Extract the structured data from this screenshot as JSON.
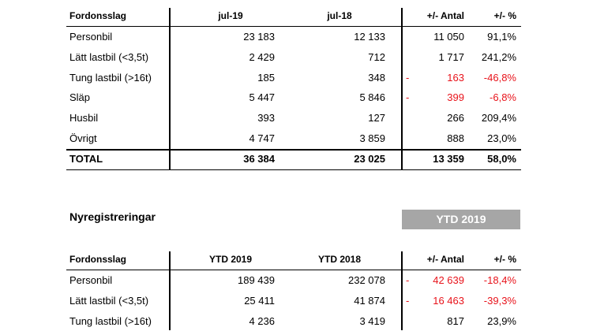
{
  "table1": {
    "headers": [
      "Fordonsslag",
      "jul-19",
      "jul-18",
      "+/- Antal",
      "+/- %"
    ],
    "rows": [
      {
        "name": "Personbil",
        "cur": "23 183",
        "prev": "12 133",
        "diff": "11 050",
        "pct": "91,1%",
        "negative": false
      },
      {
        "name": "Lätt lastbil (<3,5t)",
        "cur": "2 429",
        "prev": "712",
        "diff": "1 717",
        "pct": "241,2%",
        "negative": false
      },
      {
        "name": "Tung lastbil (>16t)",
        "cur": "185",
        "prev": "348",
        "diff": "163",
        "pct": "-46,8%",
        "negative": true
      },
      {
        "name": "Släp",
        "cur": "5 447",
        "prev": "5 846",
        "diff": "399",
        "pct": "-6,8%",
        "negative": true
      },
      {
        "name": "Husbil",
        "cur": "393",
        "prev": "127",
        "diff": "266",
        "pct": "209,4%",
        "negative": false
      },
      {
        "name": "Övrigt",
        "cur": "4 747",
        "prev": "3 859",
        "diff": "888",
        "pct": "23,0%",
        "negative": false
      }
    ],
    "total": {
      "name": "TOTAL",
      "cur": "36 384",
      "prev": "23 025",
      "diff": "13 359",
      "pct": "58,0%"
    }
  },
  "section": {
    "title": "Nyregistreringar",
    "badge": "YTD 2019"
  },
  "table2": {
    "headers": [
      "Fordonsslag",
      "YTD 2019",
      "YTD 2018",
      "+/- Antal",
      "+/- %"
    ],
    "rows": [
      {
        "name": "Personbil",
        "cur": "189 439",
        "prev": "232 078",
        "diff": "42 639",
        "pct": "-18,4%",
        "negative": true
      },
      {
        "name": "Lätt lastbil (<3,5t)",
        "cur": "25 411",
        "prev": "41 874",
        "diff": "16 463",
        "pct": "-39,3%",
        "negative": true
      },
      {
        "name": "Tung lastbil (>16t)",
        "cur": "4 236",
        "prev": "3 419",
        "diff": "817",
        "pct": "23,9%",
        "negative": false
      }
    ]
  },
  "colors": {
    "negative": "#e8131b",
    "badge_bg": "#a6a6a6"
  },
  "minus_sign": "-"
}
